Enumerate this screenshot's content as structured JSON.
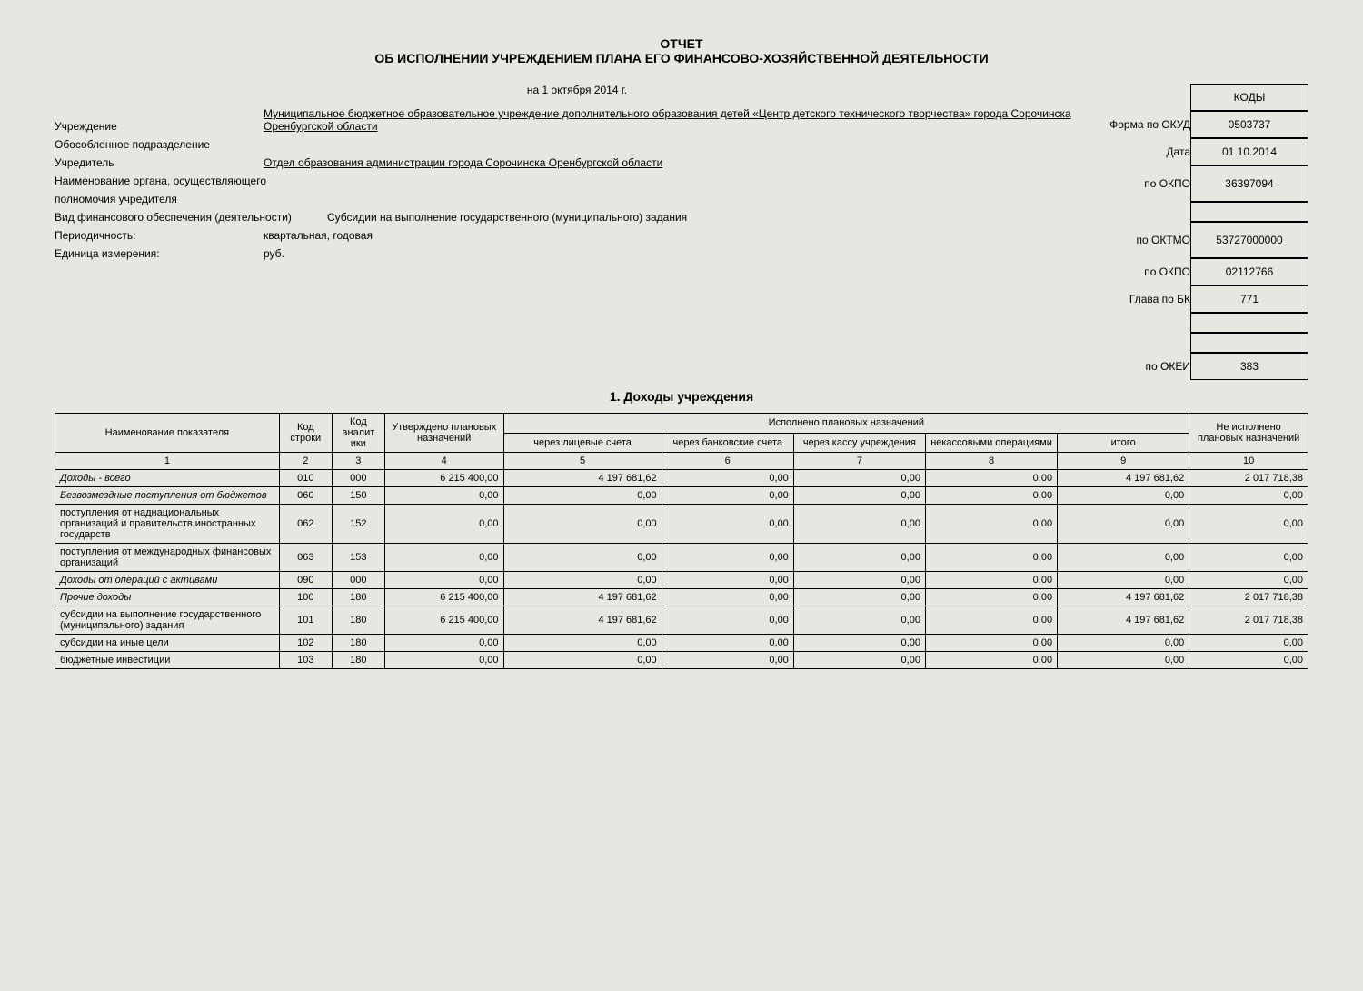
{
  "title1": "ОТЧЕТ",
  "title2": "ОБ ИСПОЛНЕНИИ УЧРЕЖДЕНИЕМ ПЛАНА ЕГО ФИНАНСОВО-ХОЗЯЙСТВЕННОЙ ДЕЯТЕЛЬНОСТИ",
  "date_line": "на 1 октября 2014 г.",
  "labels": {
    "uchrezhdenie": "Учреждение",
    "obosobl": "Обособленное подразделение",
    "uchreditel": "Учредитель",
    "organ1": "Наименование органа, осуществляющего",
    "organ2": "полномочия учредителя",
    "vid": "Вид финансового обеспечения (деятельности)",
    "period": "Периодичность:",
    "unit": "Единица измерения:"
  },
  "values": {
    "uchrezhdenie": "Муниципальное бюджетное образовательное учреждение дополнительного образования детей «Центр детского технического творчества» города Сорочинска Оренбургской области",
    "uchreditel": "Отдел образования администрации города Сорочинска Оренбургской области",
    "vid": "Субсидии на выполнение государственного (муниципального) задания",
    "period": "квартальная, годовая",
    "unit": "руб."
  },
  "codes_header": "КОДЫ",
  "code_labels": {
    "okud": "Форма по ОКУД",
    "date": "Дата",
    "okpo1": "по ОКПО",
    "oktmo": "по ОКТМО",
    "okpo2": "по ОКПО",
    "glava": "Глава по БК",
    "okei": "по ОКЕИ"
  },
  "codes": {
    "okud": "0503737",
    "date": "01.10.2014",
    "okpo1": "36397094",
    "blank1": "",
    "oktmo": "53727000000",
    "okpo2": "02112766",
    "glava": "771",
    "blank2": "",
    "blank3": "",
    "okei": "383"
  },
  "section_title": "1. Доходы учреждения",
  "table": {
    "head": {
      "c1": "Наименование показателя",
      "c2": "Код строки",
      "c3": "Код аналит ики",
      "c4": "Утверждено плановых назначений",
      "group": "Исполнено плановых назначений",
      "c5": "через лицевые счета",
      "c6": "через банковские счета",
      "c7": "через кассу учреждения",
      "c8": "некассовыми операциями",
      "c9": "итого",
      "c10": "Не исполнено плановых назначений"
    },
    "numrow": [
      "1",
      "2",
      "3",
      "4",
      "5",
      "6",
      "7",
      "8",
      "9",
      "10"
    ],
    "rows": [
      {
        "name": "Доходы - всего",
        "italic": true,
        "c2": "010",
        "c3": "000",
        "c4": "6 215 400,00",
        "c5": "4 197 681,62",
        "c6": "0,00",
        "c7": "0,00",
        "c8": "0,00",
        "c9": "4 197 681,62",
        "c10": "2 017 718,38"
      },
      {
        "name": "Безвозмездные поступления от бюджетов",
        "italic": true,
        "c2": "060",
        "c3": "150",
        "c4": "0,00",
        "c5": "0,00",
        "c6": "0,00",
        "c7": "0,00",
        "c8": "0,00",
        "c9": "0,00",
        "c10": "0,00"
      },
      {
        "name": "поступления от наднациональных организаций и правительств иностранных государств",
        "italic": false,
        "c2": "062",
        "c3": "152",
        "c4": "0,00",
        "c5": "0,00",
        "c6": "0,00",
        "c7": "0,00",
        "c8": "0,00",
        "c9": "0,00",
        "c10": "0,00"
      },
      {
        "name": "поступления от международных финансовых организаций",
        "italic": false,
        "c2": "063",
        "c3": "153",
        "c4": "0,00",
        "c5": "0,00",
        "c6": "0,00",
        "c7": "0,00",
        "c8": "0,00",
        "c9": "0,00",
        "c10": "0,00"
      },
      {
        "name": "Доходы от операций с активами",
        "italic": true,
        "c2": "090",
        "c3": "000",
        "c4": "0,00",
        "c5": "0,00",
        "c6": "0,00",
        "c7": "0,00",
        "c8": "0,00",
        "c9": "0,00",
        "c10": "0,00"
      },
      {
        "name": "Прочие доходы",
        "italic": true,
        "c2": "100",
        "c3": "180",
        "c4": "6 215 400,00",
        "c5": "4 197 681,62",
        "c6": "0,00",
        "c7": "0,00",
        "c8": "0,00",
        "c9": "4 197 681,62",
        "c10": "2 017 718,38"
      },
      {
        "name": "субсидии на выполнение государственного (муниципального) задания",
        "italic": false,
        "c2": "101",
        "c3": "180",
        "c4": "6 215 400,00",
        "c5": "4 197 681,62",
        "c6": "0,00",
        "c7": "0,00",
        "c8": "0,00",
        "c9": "4 197 681,62",
        "c10": "2 017 718,38"
      },
      {
        "name": "субсидии на иные цели",
        "italic": false,
        "c2": "102",
        "c3": "180",
        "c4": "0,00",
        "c5": "0,00",
        "c6": "0,00",
        "c7": "0,00",
        "c8": "0,00",
        "c9": "0,00",
        "c10": "0,00"
      },
      {
        "name": "бюджетные инвестиции",
        "italic": false,
        "c2": "103",
        "c3": "180",
        "c4": "0,00",
        "c5": "0,00",
        "c6": "0,00",
        "c7": "0,00",
        "c8": "0,00",
        "c9": "0,00",
        "c10": "0,00"
      }
    ]
  }
}
